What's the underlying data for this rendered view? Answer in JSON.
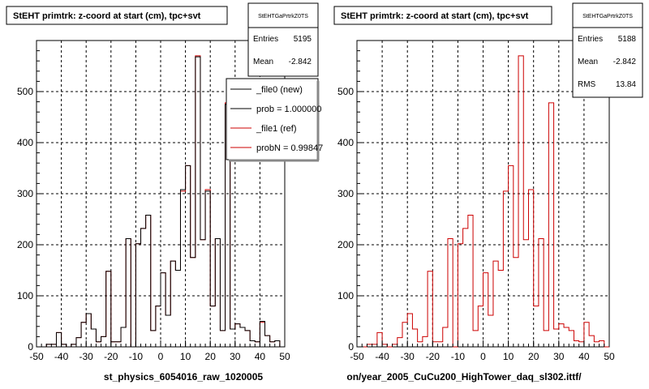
{
  "colors": {
    "new": "#000000",
    "ref": "#cc0000",
    "background": "#ffffff"
  },
  "footer_text": "",
  "legend": {
    "entries": [
      {
        "label": "_file0 (new)",
        "color": "#000000"
      },
      {
        "label": "prob = 1.000000",
        "color": "#000000"
      },
      {
        "label": "_file1 (ref)",
        "color": "#cc0000"
      },
      {
        "label": "probN = 0.99847",
        "color": "#cc0000"
      }
    ]
  },
  "chart_data": [
    {
      "type": "bar",
      "title": "StEHT primtrk: z-coord at start (cm), tpc+svt",
      "xlabel": "st_physics_6054016_raw_1020005",
      "ylabel": "",
      "xlim": [
        -50,
        50
      ],
      "ylim": [
        0,
        600
      ],
      "xticks": [
        -50,
        -40,
        -30,
        -20,
        -10,
        0,
        10,
        20,
        30,
        40,
        50
      ],
      "yticks": [
        0,
        100,
        200,
        300,
        400,
        500
      ],
      "bin_width": 2,
      "grid": true,
      "stats": {
        "name": "StEHTGaPrtrkZ0TS",
        "rows": [
          {
            "label": "Entries",
            "value": "5195"
          },
          {
            "label": "Mean",
            "value": "-2.842"
          }
        ]
      },
      "series": [
        {
          "name": "_file0 (new)",
          "color": "#000000",
          "bins_from": -50,
          "values": [
            0,
            0,
            5,
            5,
            28,
            5,
            0,
            5,
            18,
            48,
            65,
            35,
            10,
            20,
            148,
            10,
            10,
            38,
            212,
            0,
            202,
            232,
            258,
            32,
            80,
            145,
            62,
            168,
            150,
            308,
            355,
            175,
            568,
            210,
            305,
            80,
            212,
            32,
            475,
            35,
            45,
            38,
            32,
            12,
            10,
            50,
            22,
            10,
            12,
            0
          ]
        },
        {
          "name": "_file1 (ref)",
          "color": "#cc0000",
          "bins_from": -50,
          "values": [
            0,
            0,
            5,
            5,
            28,
            5,
            0,
            5,
            18,
            48,
            65,
            35,
            10,
            20,
            148,
            10,
            10,
            38,
            212,
            0,
            202,
            232,
            258,
            32,
            80,
            145,
            62,
            168,
            150,
            305,
            355,
            175,
            570,
            210,
            308,
            80,
            212,
            32,
            478,
            35,
            45,
            38,
            32,
            12,
            10,
            48,
            22,
            10,
            12,
            0
          ]
        }
      ]
    },
    {
      "type": "bar",
      "title": "StEHT primtrk: z-coord at start (cm), tpc+svt",
      "xlabel": "on/year_2005_CuCu200_HighTower_daq_sl302.ittf/",
      "ylabel": "",
      "xlim": [
        -50,
        50
      ],
      "ylim": [
        0,
        600
      ],
      "xticks": [
        -50,
        -40,
        -30,
        -20,
        -10,
        0,
        10,
        20,
        30,
        40,
        50
      ],
      "yticks": [
        0,
        100,
        200,
        300,
        400,
        500
      ],
      "bin_width": 2,
      "grid": true,
      "stats": {
        "name": "StEHTGaPrtrkZ0TS",
        "rows": [
          {
            "label": "Entries",
            "value": "5188"
          },
          {
            "label": "Mean",
            "value": "-2.842"
          },
          {
            "label": "RMS",
            "value": "13.84"
          }
        ]
      },
      "series": [
        {
          "name": "_file1 (ref)",
          "color": "#cc0000",
          "bins_from": -50,
          "values": [
            0,
            0,
            5,
            5,
            28,
            5,
            0,
            5,
            18,
            48,
            65,
            35,
            10,
            20,
            148,
            10,
            10,
            38,
            212,
            0,
            202,
            232,
            258,
            32,
            80,
            145,
            62,
            168,
            150,
            305,
            355,
            175,
            570,
            210,
            308,
            80,
            212,
            32,
            478,
            35,
            45,
            38,
            32,
            12,
            10,
            48,
            22,
            10,
            12,
            0
          ]
        }
      ]
    }
  ]
}
